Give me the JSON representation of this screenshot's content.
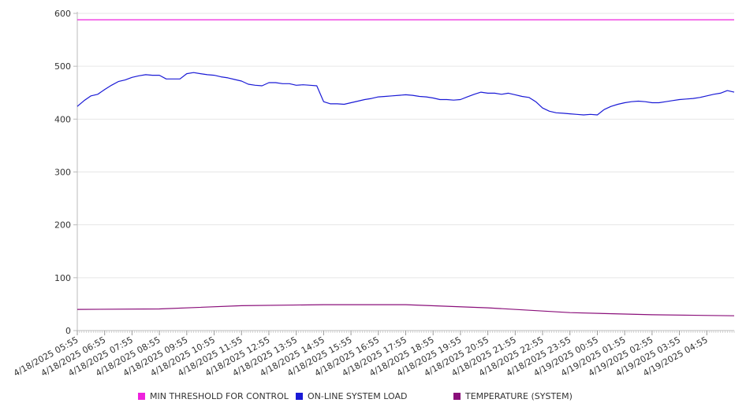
{
  "chart_data": {
    "type": "line",
    "ylim": [
      0,
      600
    ],
    "y_ticks": [
      "0",
      "100",
      "200",
      "300",
      "400",
      "500",
      "600"
    ],
    "x_tick_labels": [
      "4/18/2025 05:55",
      "4/18/2025 06:55",
      "4/18/2025 07:55",
      "4/18/2025 08:55",
      "4/18/2025 09:55",
      "4/18/2025 10:55",
      "4/18/2025 11:55",
      "4/18/2025 12:55",
      "4/18/2025 13:55",
      "4/18/2025 14:55",
      "4/18/2025 15:55",
      "4/18/2025 16:55",
      "4/18/2025 17:55",
      "4/18/2025 18:55",
      "4/18/2025 19:55",
      "4/18/2025 20:55",
      "4/18/2025 21:55",
      "4/18/2025 22:55",
      "4/18/2025 23:55",
      "4/19/2025 00:55",
      "4/19/2025 01:55",
      "4/19/2025 02:55",
      "4/19/2025 03:55",
      "4/19/2025 04:55"
    ],
    "x_range": [
      "4/18/2025 05:55",
      "4/19/2025 05:55"
    ],
    "grid": "horizontal",
    "legend_position": "bottom",
    "series": [
      {
        "name": "MIN THRESHOLD FOR CONTROL",
        "color": "#ee22dd",
        "x": [
          "4/18/2025 05:55",
          "4/19/2025 05:55"
        ],
        "values": [
          588,
          588
        ]
      },
      {
        "name": "ON-LINE SYSTEM LOAD",
        "color": "#1a1ad6",
        "x": [
          "4/18/2025 05:55",
          "4/18/2025 06:10",
          "4/18/2025 06:25",
          "4/18/2025 06:40",
          "4/18/2025 06:55",
          "4/18/2025 07:10",
          "4/18/2025 07:25",
          "4/18/2025 07:40",
          "4/18/2025 07:55",
          "4/18/2025 08:10",
          "4/18/2025 08:25",
          "4/18/2025 08:40",
          "4/18/2025 08:55",
          "4/18/2025 09:10",
          "4/18/2025 09:25",
          "4/18/2025 09:40",
          "4/18/2025 09:55",
          "4/18/2025 10:10",
          "4/18/2025 10:25",
          "4/18/2025 10:40",
          "4/18/2025 10:55",
          "4/18/2025 11:10",
          "4/18/2025 11:25",
          "4/18/2025 11:40",
          "4/18/2025 11:55",
          "4/18/2025 12:10",
          "4/18/2025 12:25",
          "4/18/2025 12:40",
          "4/18/2025 12:55",
          "4/18/2025 13:10",
          "4/18/2025 13:25",
          "4/18/2025 13:40",
          "4/18/2025 13:55",
          "4/18/2025 14:10",
          "4/18/2025 14:25",
          "4/18/2025 14:40",
          "4/18/2025 14:55",
          "4/18/2025 15:10",
          "4/18/2025 15:25",
          "4/18/2025 15:40",
          "4/18/2025 15:55",
          "4/18/2025 16:10",
          "4/18/2025 16:25",
          "4/18/2025 16:40",
          "4/18/2025 16:55",
          "4/18/2025 17:10",
          "4/18/2025 17:25",
          "4/18/2025 17:40",
          "4/18/2025 17:55",
          "4/18/2025 18:10",
          "4/18/2025 18:25",
          "4/18/2025 18:40",
          "4/18/2025 18:55",
          "4/18/2025 19:10",
          "4/18/2025 19:25",
          "4/18/2025 19:40",
          "4/18/2025 19:55",
          "4/18/2025 20:10",
          "4/18/2025 20:25",
          "4/18/2025 20:40",
          "4/18/2025 20:55",
          "4/18/2025 21:10",
          "4/18/2025 21:25",
          "4/18/2025 21:40",
          "4/18/2025 21:55",
          "4/18/2025 22:10",
          "4/18/2025 22:25",
          "4/18/2025 22:40",
          "4/18/2025 22:55",
          "4/18/2025 23:10",
          "4/18/2025 23:25",
          "4/18/2025 23:40",
          "4/18/2025 23:55",
          "4/19/2025 00:10",
          "4/19/2025 00:25",
          "4/19/2025 00:40",
          "4/19/2025 00:55",
          "4/19/2025 01:10",
          "4/19/2025 01:25",
          "4/19/2025 01:40",
          "4/19/2025 01:55",
          "4/19/2025 02:10",
          "4/19/2025 02:25",
          "4/19/2025 02:40",
          "4/19/2025 02:55",
          "4/19/2025 03:10",
          "4/19/2025 03:25",
          "4/19/2025 03:40",
          "4/19/2025 03:55",
          "4/19/2025 04:10",
          "4/19/2025 04:25",
          "4/19/2025 04:40",
          "4/19/2025 04:55",
          "4/19/2025 05:10",
          "4/19/2025 05:25",
          "4/19/2025 05:40",
          "4/19/2025 05:55"
        ],
        "values": [
          424,
          435,
          444,
          447,
          456,
          464,
          471,
          474,
          479,
          482,
          484,
          483,
          483,
          476,
          476,
          476,
          486,
          488,
          486,
          484,
          483,
          480,
          478,
          475,
          472,
          466,
          464,
          463,
          469,
          469,
          467,
          467,
          464,
          465,
          464,
          463,
          433,
          429,
          429,
          428,
          431,
          434,
          437,
          439,
          442,
          443,
          444,
          445,
          446,
          445,
          443,
          442,
          440,
          437,
          437,
          436,
          437,
          442,
          447,
          451,
          449,
          449,
          447,
          449,
          446,
          443,
          441,
          433,
          421,
          415,
          412,
          411,
          410,
          409,
          408,
          409,
          408,
          418,
          424,
          428,
          431,
          433,
          434,
          433,
          431,
          431,
          433,
          435,
          437,
          438,
          439,
          441,
          444,
          447,
          449,
          454,
          451
        ]
      },
      {
        "name": "TEMPERATURE (SYSTEM)",
        "color": "#8a0f7a",
        "x": [
          "4/18/2025 05:55",
          "4/18/2025 08:55",
          "4/18/2025 11:55",
          "4/18/2025 14:55",
          "4/18/2025 17:55",
          "4/18/2025 20:55",
          "4/18/2025 23:55",
          "4/19/2025 02:55",
          "4/19/2025 05:55"
        ],
        "values": [
          40,
          41,
          47,
          49,
          49,
          43,
          34,
          30,
          28
        ]
      }
    ]
  }
}
